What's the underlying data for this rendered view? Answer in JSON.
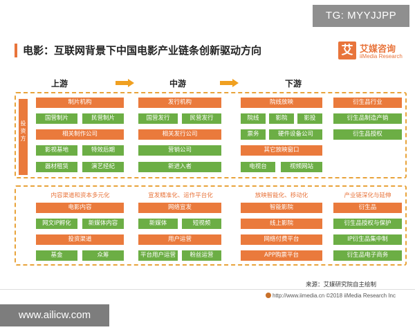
{
  "watermark_top": "TG: MYYJJPP",
  "watermark_bottom": "www.ailicw.com",
  "title": "电影：互联网背景下中国电影产业链条创新驱动方向",
  "logo": {
    "mark": "艾",
    "name": "艾媒咨询",
    "en": "iiMedia Research"
  },
  "stages": {
    "up": "上游",
    "mid": "中游",
    "down": "下游"
  },
  "side_label": "投资方",
  "top": {
    "c1": {
      "head": "制片机构",
      "r1a": "国营制片",
      "r1b": "民营制片",
      "sub": "相关制作公司",
      "r3a": "影视基地",
      "r3b": "特效后期",
      "r4a": "器材租赁",
      "r4b": "演艺经纪"
    },
    "c2": {
      "head": "发行机构",
      "r1a": "国营发行",
      "r1b": "民营发行",
      "sub": "相关发行公司",
      "r3": "营销公司",
      "r4": "新进入者"
    },
    "c3": {
      "head": "院线放映",
      "r1a": "院线",
      "r1b": "影院",
      "r1c": "影投",
      "r2a": "票务",
      "r2b": "硬件设备公司",
      "sub": "其它放映窗口",
      "r4a": "电视台",
      "r4b": "视频网站"
    },
    "c4": {
      "head": "衍生品行业",
      "r1": "衍生品制造产销",
      "r2": "衍生品授权"
    }
  },
  "bottom": {
    "c1": {
      "title": "内容渠道和资本多元化",
      "head": "电影内容",
      "r1a": "网文IP孵化",
      "r1b": "新媒体内容",
      "sub": "投资渠道",
      "r3a": "基金",
      "r3b": "众筹"
    },
    "c2": {
      "title": "宣发精准化、运作平台化",
      "head": "网络宣发",
      "r1a": "新媒体",
      "r1b": "短视频",
      "sub": "用户运营",
      "r3a": "平台用户运营",
      "r3b": "粉丝运营"
    },
    "c3": {
      "title": "放映智能化、移动化",
      "head": "智能影院",
      "r1": "线上影院",
      "r2": "网络付费平台",
      "r3": "APP购票平台"
    },
    "c4": {
      "title": "产业链深化与延伸",
      "head": "衍生品",
      "r1": "衍生品授权与保护",
      "r2": "IP衍生品集中制",
      "r3": "衍生品电子商务"
    }
  },
  "source": "来源：艾媒研究院自主绘制",
  "footer": "http://www.iimedia.cn  ©2018 iiMedia Research Inc",
  "colors": {
    "orange": "#ea7a3c",
    "green": "#6cae45",
    "dash": "#e8a33a"
  }
}
